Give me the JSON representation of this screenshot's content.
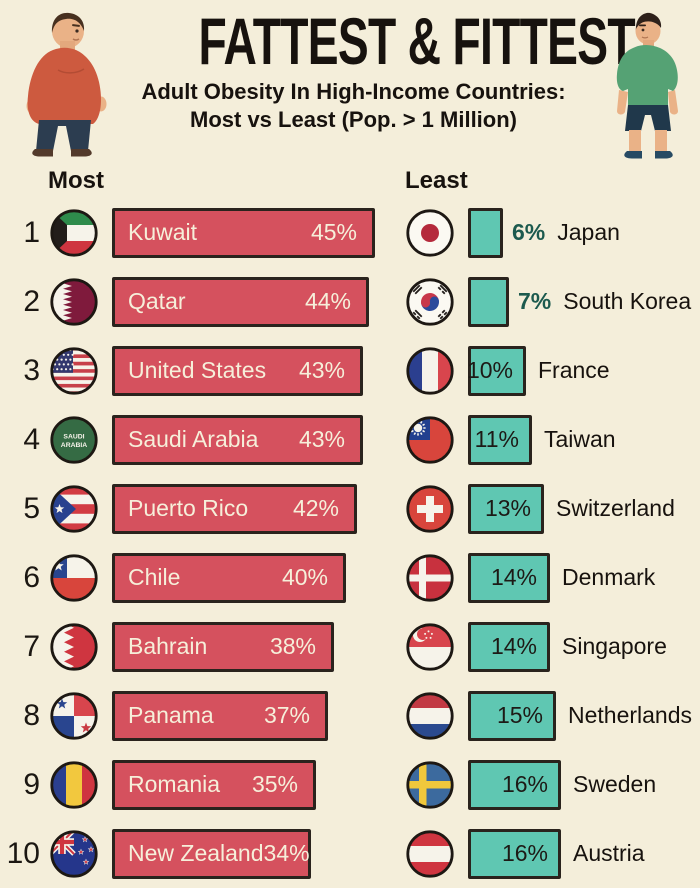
{
  "header": {
    "title": "FATTEST & FITTEST",
    "subtitle_line1": "Adult Obesity In High-Income Countries:",
    "subtitle_line2": "Most vs Least (Pop. > 1 Million)"
  },
  "icons": {
    "left_illustration": "overweight-man-icon",
    "right_illustration": "fit-man-icon"
  },
  "colors": {
    "background": "#f4eeda",
    "most_bar": "#d5515e",
    "least_bar": "#5fc7b2",
    "bar_border": "#2a231d",
    "most_bar_text": "#f6efda",
    "least_pct_outside_text": "#1c5a4e",
    "text": "#17120e"
  },
  "chart_data": {
    "type": "bar",
    "title": "FATTEST & FITTEST",
    "subtitle": "Adult Obesity In High-Income Countries: Most vs Least (Pop. > 1 Million)",
    "unit": "percent of adults obese",
    "legend_position": "none",
    "grid": false,
    "most": {
      "label": "Most",
      "bar_color": "#d5515e",
      "entries": [
        {
          "rank": 1,
          "country": "Kuwait",
          "value": 45,
          "display": "45%",
          "flag_icon": "kuwait-flag-icon"
        },
        {
          "rank": 2,
          "country": "Qatar",
          "value": 44,
          "display": "44%",
          "flag_icon": "qatar-flag-icon"
        },
        {
          "rank": 3,
          "country": "United States",
          "value": 43,
          "display": "43%",
          "flag_icon": "united-states-flag-icon"
        },
        {
          "rank": 4,
          "country": "Saudi Arabia",
          "value": 43,
          "display": "43%",
          "flag_icon": "saudi-arabia-flag-icon",
          "flag_text": "SAUDI ARABIA"
        },
        {
          "rank": 5,
          "country": "Puerto Rico",
          "value": 42,
          "display": "42%",
          "flag_icon": "puerto-rico-flag-icon"
        },
        {
          "rank": 6,
          "country": "Chile",
          "value": 40,
          "display": "40%",
          "flag_icon": "chile-flag-icon"
        },
        {
          "rank": 7,
          "country": "Bahrain",
          "value": 38,
          "display": "38%",
          "flag_icon": "bahrain-flag-icon"
        },
        {
          "rank": 8,
          "country": "Panama",
          "value": 37,
          "display": "37%",
          "flag_icon": "panama-flag-icon"
        },
        {
          "rank": 9,
          "country": "Romania",
          "value": 35,
          "display": "35%",
          "flag_icon": "romania-flag-icon"
        },
        {
          "rank": 10,
          "country": "New Zealand",
          "value": 34,
          "display": "34%",
          "flag_icon": "new-zealand-flag-icon"
        }
      ]
    },
    "least": {
      "label": "Least",
      "bar_color": "#5fc7b2",
      "entries": [
        {
          "country": "Japan",
          "value": 6,
          "display": "6%",
          "flag_icon": "japan-flag-icon",
          "pct_position": "outside"
        },
        {
          "country": "South Korea",
          "value": 7,
          "display": "7%",
          "flag_icon": "south-korea-flag-icon",
          "pct_position": "outside"
        },
        {
          "country": "France",
          "value": 10,
          "display": "10%",
          "flag_icon": "france-flag-icon",
          "pct_position": "inside"
        },
        {
          "country": "Taiwan",
          "value": 11,
          "display": "11%",
          "flag_icon": "taiwan-flag-icon",
          "pct_position": "inside"
        },
        {
          "country": "Switzerland",
          "value": 13,
          "display": "13%",
          "flag_icon": "switzerland-flag-icon",
          "pct_position": "inside"
        },
        {
          "country": "Denmark",
          "value": 14,
          "display": "14%",
          "flag_icon": "denmark-flag-icon",
          "pct_position": "inside"
        },
        {
          "country": "Singapore",
          "value": 14,
          "display": "14%",
          "flag_icon": "singapore-flag-icon",
          "pct_position": "inside"
        },
        {
          "country": "Netherlands",
          "value": 15,
          "display": "15%",
          "flag_icon": "netherlands-flag-icon",
          "pct_position": "inside"
        },
        {
          "country": "Sweden",
          "value": 16,
          "display": "16%",
          "flag_icon": "sweden-flag-icon",
          "pct_position": "inside"
        },
        {
          "country": "Austria",
          "value": 16,
          "display": "16%",
          "flag_icon": "austria-flag-icon",
          "pct_position": "inside"
        }
      ]
    }
  }
}
